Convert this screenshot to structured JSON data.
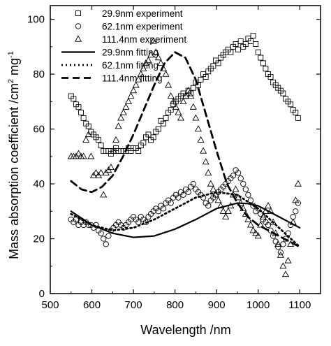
{
  "chart_data": {
    "type": "scatter",
    "xlabel": "Wavelength /nm",
    "ylabel_main": "Mass absorption coefficient /cm",
    "ylabel_sup1": "2",
    "ylabel_mid": " mg",
    "ylabel_sup2": "-1",
    "xlim": [
      500,
      1150
    ],
    "ylim": [
      0,
      105
    ],
    "x_ticks": [
      500,
      600,
      700,
      800,
      900,
      1000,
      1100
    ],
    "y_ticks": [
      0,
      20,
      40,
      60,
      80,
      100
    ],
    "grid": false,
    "legend_position": "top-left",
    "series": [
      {
        "name": "29.9nm experiment",
        "kind": "scatter",
        "marker": "square",
        "x": [
          550,
          556,
          562,
          568,
          574,
          580,
          586,
          592,
          598,
          604,
          610,
          616,
          622,
          628,
          634,
          640,
          646,
          652,
          658,
          664,
          670,
          676,
          682,
          688,
          694,
          700,
          706,
          712,
          718,
          724,
          730,
          736,
          742,
          748,
          754,
          760,
          766,
          772,
          778,
          784,
          790,
          796,
          802,
          808,
          814,
          820,
          826,
          832,
          838,
          844,
          850,
          856,
          862,
          868,
          874,
          880,
          886,
          892,
          898,
          904,
          910,
          916,
          922,
          928,
          934,
          940,
          946,
          952,
          958,
          964,
          970,
          976,
          982,
          988,
          994,
          1000,
          1006,
          1012,
          1018,
          1024,
          1030,
          1036,
          1042,
          1048,
          1054,
          1060,
          1066,
          1072,
          1078,
          1084,
          1090,
          1096
        ],
        "y": [
          72,
          71,
          69,
          68,
          66,
          64,
          62,
          61,
          59,
          58,
          57,
          56,
          54,
          52,
          52,
          52,
          51,
          52,
          53,
          52,
          52,
          52,
          52,
          53,
          52,
          53,
          53,
          52,
          54,
          55,
          57,
          58,
          56,
          57,
          59,
          60,
          63,
          62,
          64,
          66,
          67,
          69,
          70,
          71,
          72,
          73,
          72,
          74,
          73,
          75,
          77,
          76,
          78,
          80,
          79,
          81,
          82,
          83,
          85,
          84,
          86,
          87,
          88,
          89,
          88,
          90,
          91,
          89,
          92,
          90,
          91,
          93,
          92,
          94,
          91,
          88,
          86,
          84,
          82,
          80,
          79,
          77,
          76,
          75,
          74,
          73,
          71,
          70,
          69,
          67,
          66,
          64
        ]
      },
      {
        "name": "62.1nm experiment",
        "kind": "scatter",
        "marker": "circle",
        "x": [
          550,
          556,
          562,
          568,
          574,
          580,
          586,
          592,
          598,
          604,
          610,
          616,
          622,
          628,
          634,
          640,
          646,
          652,
          658,
          664,
          670,
          676,
          682,
          688,
          694,
          700,
          706,
          712,
          718,
          724,
          730,
          736,
          742,
          748,
          754,
          760,
          766,
          772,
          778,
          784,
          790,
          796,
          802,
          808,
          814,
          820,
          826,
          832,
          838,
          844,
          850,
          856,
          862,
          868,
          874,
          880,
          886,
          892,
          898,
          904,
          910,
          916,
          922,
          928,
          934,
          940,
          946,
          952,
          958,
          964,
          970,
          976,
          982,
          988,
          994,
          1000,
          1006,
          1012,
          1018,
          1024,
          1030,
          1036,
          1042,
          1048,
          1054,
          1060,
          1066,
          1072,
          1078,
          1084,
          1090,
          1096
        ],
        "y": [
          27,
          26,
          27,
          25,
          26,
          25,
          26,
          25,
          25,
          24,
          25,
          23,
          22,
          20,
          18,
          21,
          23,
          24,
          25,
          26,
          25,
          24,
          25,
          26,
          27,
          28,
          27,
          26,
          28,
          27,
          26,
          28,
          29,
          30,
          31,
          30,
          32,
          31,
          33,
          34,
          33,
          35,
          36,
          35,
          37,
          36,
          38,
          37,
          39,
          40,
          38,
          37,
          36,
          35,
          33,
          32,
          34,
          35,
          36,
          37,
          38,
          39,
          40,
          41,
          42,
          43,
          45,
          44,
          42,
          40,
          38,
          36,
          34,
          32,
          30,
          31,
          29,
          27,
          26,
          25,
          23,
          21,
          19,
          17,
          15,
          18,
          20,
          22,
          25,
          28,
          30,
          33
        ]
      },
      {
        "name": "111.4nm experiment",
        "kind": "scatter",
        "marker": "triangle",
        "x": [
          550,
          556,
          562,
          568,
          574,
          580,
          586,
          592,
          598,
          604,
          610,
          616,
          622,
          628,
          634,
          640,
          646,
          652,
          658,
          664,
          670,
          676,
          682,
          688,
          694,
          700,
          706,
          712,
          718,
          724,
          730,
          736,
          742,
          748,
          754,
          760,
          766,
          772,
          778,
          784,
          790,
          796,
          802,
          808,
          814,
          820,
          826,
          832,
          838,
          844,
          850,
          856,
          862,
          868,
          874,
          880,
          886,
          892,
          898,
          904,
          910,
          916,
          922,
          928,
          934,
          940,
          946,
          952,
          958,
          964,
          970,
          976,
          982,
          988,
          994,
          1000,
          1006,
          1012,
          1018,
          1024,
          1030,
          1036,
          1042,
          1048,
          1054,
          1060,
          1066,
          1072,
          1078,
          1084,
          1090,
          1096
        ],
        "y": [
          50,
          50,
          50,
          51,
          50,
          50,
          56,
          58,
          50,
          43,
          44,
          43,
          44,
          36,
          44,
          45,
          46,
          52,
          56,
          61,
          64,
          66,
          68,
          70,
          72,
          74,
          76,
          78,
          80,
          82,
          84,
          85,
          87,
          92,
          88,
          86,
          84,
          82,
          80,
          76,
          72,
          70,
          68,
          66,
          64,
          70,
          72,
          74,
          72,
          68,
          64,
          60,
          56,
          52,
          48,
          44,
          40,
          38,
          36,
          34,
          32,
          30,
          28,
          30,
          32,
          36,
          38,
          35,
          33,
          31,
          29,
          27,
          25,
          23,
          22,
          21,
          25,
          28,
          30,
          32,
          30,
          26,
          22,
          18,
          14,
          10,
          7,
          12,
          18,
          26,
          34,
          40
        ]
      },
      {
        "name": "29.9nm fitting",
        "kind": "line",
        "dash": "solid",
        "x": [
          550,
          600,
          650,
          700,
          750,
          800,
          850,
          900,
          950,
          975,
          1000,
          1050,
          1100
        ],
        "y": [
          30,
          25,
          22,
          20.5,
          21,
          23.5,
          27,
          31,
          33,
          32.8,
          32,
          28,
          24
        ]
      },
      {
        "name": "62.1nm fitting",
        "kind": "line",
        "dash": "dotted",
        "x": [
          550,
          600,
          650,
          700,
          750,
          800,
          850,
          900,
          950,
          1000,
          1050,
          1100
        ],
        "y": [
          29,
          25,
          23,
          24,
          27,
          31,
          35,
          37,
          36,
          31,
          24,
          17
        ]
      },
      {
        "name": "111.4nm fitting",
        "kind": "line",
        "dash": "dashed",
        "x": [
          550,
          575,
          600,
          625,
          650,
          675,
          700,
          725,
          750,
          775,
          800,
          825,
          850,
          875,
          900,
          925,
          950,
          975,
          1000,
          1025,
          1050,
          1075,
          1100
        ],
        "y": [
          41,
          38,
          37,
          39,
          43,
          50,
          58,
          67,
          76,
          84,
          88,
          86,
          78,
          65,
          52,
          40,
          33,
          28,
          25,
          23,
          21,
          19,
          17
        ]
      }
    ]
  }
}
